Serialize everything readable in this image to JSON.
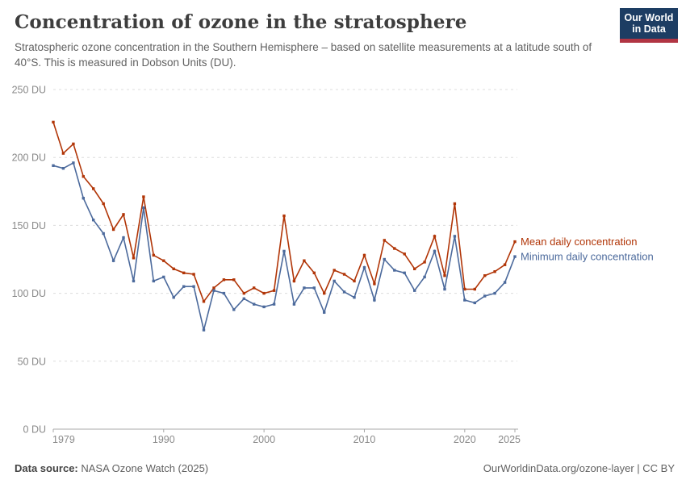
{
  "header": {
    "title": "Concentration of ozone in the stratosphere",
    "subtitle": "Stratospheric ozone concentration in the Southern Hemisphere – based on satellite measurements at a latitude south of 40°S. This is measured in Dobson Units (DU).",
    "logo": {
      "line1": "Our World",
      "line2": "in Data"
    }
  },
  "footer": {
    "source_label": "Data source:",
    "source_value": "NASA Ozone Watch (2025)",
    "credit": "OurWorldinData.org/ozone-layer | CC BY"
  },
  "chart_data": {
    "type": "line",
    "title": "Concentration of ozone in the stratosphere",
    "xlabel": "",
    "ylabel": "Dobson Units (DU)",
    "ylim": [
      0,
      250
    ],
    "yticks": [
      0,
      50,
      100,
      150,
      200,
      250
    ],
    "ytick_suffix": " DU",
    "xticks": [
      1979,
      1990,
      2000,
      2010,
      2020,
      2025
    ],
    "grid": "horizontal-dashed",
    "legend_position": "right-of-line-ends",
    "x": [
      1979,
      1980,
      1981,
      1982,
      1983,
      1984,
      1985,
      1986,
      1987,
      1988,
      1989,
      1990,
      1991,
      1992,
      1993,
      1994,
      1995,
      1996,
      1997,
      1998,
      1999,
      2000,
      2001,
      2002,
      2003,
      2004,
      2005,
      2006,
      2007,
      2008,
      2009,
      2010,
      2011,
      2012,
      2013,
      2014,
      2015,
      2016,
      2017,
      2018,
      2019,
      2020,
      2021,
      2022,
      2023,
      2024,
      2025
    ],
    "series": [
      {
        "name": "Mean daily concentration",
        "color": "#b13507",
        "values": [
          226,
          203,
          210,
          186,
          177,
          166,
          147,
          158,
          126,
          171,
          128,
          124,
          118,
          115,
          114,
          94,
          104,
          110,
          110,
          100,
          104,
          100,
          102,
          157,
          109,
          124,
          115,
          100,
          117,
          114,
          109,
          128,
          107,
          139,
          133,
          129,
          118,
          123,
          142,
          113,
          166,
          103,
          103,
          113,
          116,
          121,
          138
        ]
      },
      {
        "name": "Minimum daily concentration",
        "color": "#4c6a9c",
        "values": [
          194,
          192,
          196,
          170,
          154,
          144,
          124,
          141,
          109,
          163,
          109,
          112,
          97,
          105,
          105,
          73,
          102,
          100,
          88,
          96,
          92,
          90,
          92,
          131,
          92,
          104,
          104,
          86,
          109,
          101,
          97,
          119,
          95,
          125,
          117,
          115,
          102,
          112,
          131,
          103,
          142,
          95,
          93,
          98,
          100,
          108,
          127
        ]
      }
    ]
  }
}
